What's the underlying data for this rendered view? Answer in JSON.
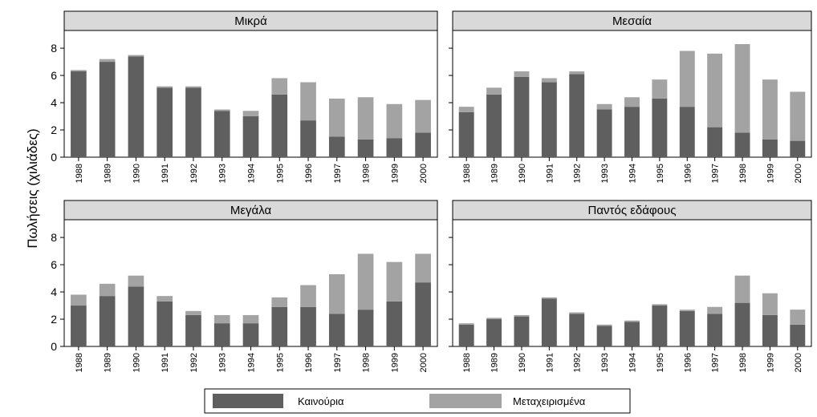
{
  "chart_data": {
    "type": "bar",
    "stacked": true,
    "ylabel": "Πωλήσεις (χιλιάδες)",
    "ylim": [
      0,
      9.3
    ],
    "yticks": [
      0,
      2,
      4,
      6,
      8
    ],
    "grid": false,
    "legend_position": "bottom",
    "categories": [
      "1988",
      "1989",
      "1990",
      "1991",
      "1992",
      "1993",
      "1994",
      "1995",
      "1996",
      "1997",
      "1998",
      "1999",
      "2000"
    ],
    "series_names": [
      "Καινούρια",
      "Μεταχειρισμένα"
    ],
    "colors": {
      "new": "#5f5f5f",
      "used": "#a3a3a3",
      "strip": "#d9d9d9"
    },
    "panels": [
      {
        "title": "Μικρά",
        "series": [
          {
            "name": "Καινούρια",
            "values": [
              6.3,
              7.0,
              7.4,
              5.1,
              5.1,
              3.4,
              3.0,
              4.6,
              2.7,
              1.5,
              1.3,
              1.4,
              1.8
            ]
          },
          {
            "name": "Μεταχειρισμένα",
            "values": [
              0.1,
              0.2,
              0.1,
              0.1,
              0.1,
              0.1,
              0.4,
              1.2,
              2.8,
              2.8,
              3.1,
              2.5,
              2.4
            ]
          }
        ]
      },
      {
        "title": "Μεσαία",
        "series": [
          {
            "name": "Καινούρια",
            "values": [
              3.3,
              4.6,
              5.9,
              5.5,
              6.1,
              3.5,
              3.7,
              4.3,
              3.7,
              2.2,
              1.8,
              1.3,
              1.2
            ]
          },
          {
            "name": "Μεταχειρισμένα",
            "values": [
              0.4,
              0.5,
              0.4,
              0.3,
              0.2,
              0.4,
              0.7,
              1.4,
              4.1,
              5.4,
              6.5,
              4.4,
              3.6
            ]
          }
        ]
      },
      {
        "title": "Μεγάλα",
        "series": [
          {
            "name": "Καινούρια",
            "values": [
              3.0,
              3.7,
              4.4,
              3.3,
              2.3,
              1.7,
              1.7,
              2.9,
              2.9,
              2.4,
              2.7,
              3.3,
              4.7
            ]
          },
          {
            "name": "Μεταχειρισμένα",
            "values": [
              0.8,
              0.9,
              0.8,
              0.4,
              0.3,
              0.6,
              0.6,
              0.7,
              1.6,
              2.9,
              4.1,
              2.9,
              2.1
            ]
          }
        ]
      },
      {
        "title": "Παντός εδάφους",
        "series": [
          {
            "name": "Καινούρια",
            "values": [
              1.6,
              2.0,
              2.2,
              3.5,
              2.4,
              1.5,
              1.8,
              3.0,
              2.6,
              2.4,
              3.2,
              2.3,
              1.6
            ]
          },
          {
            "name": "Μεταχειρισμένα",
            "values": [
              0.1,
              0.1,
              0.1,
              0.1,
              0.1,
              0.1,
              0.1,
              0.1,
              0.1,
              0.5,
              2.0,
              1.6,
              1.1
            ]
          }
        ]
      }
    ]
  }
}
